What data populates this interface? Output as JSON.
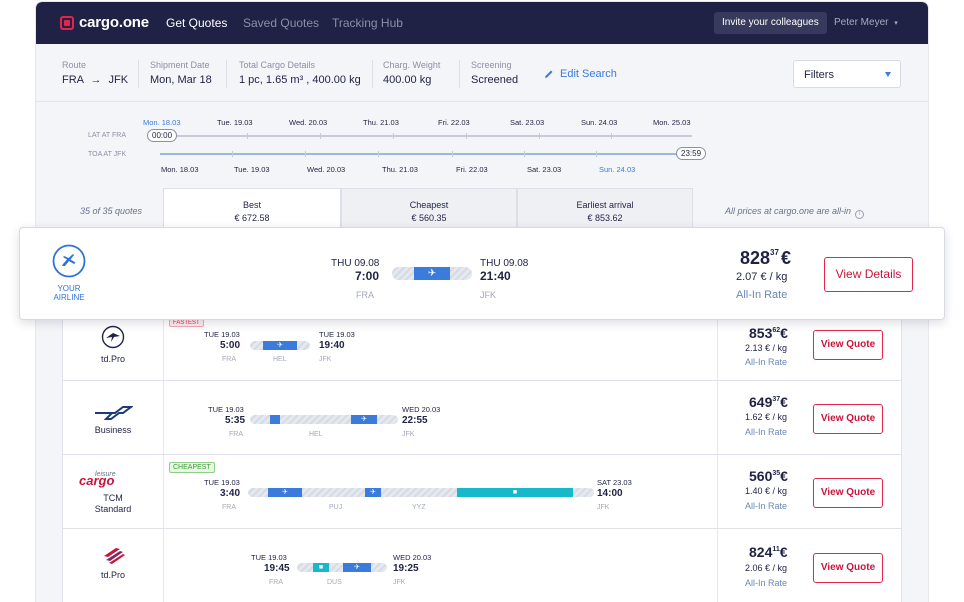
{
  "nav": {
    "logo": "cargo.one",
    "links": [
      "Get Quotes",
      "Saved Quotes",
      "Tracking Hub"
    ],
    "invite": "Invite your colleagues",
    "user": "Peter Meyer"
  },
  "search": {
    "route_label": "Route",
    "route_from": "FRA",
    "route_to": "JFK",
    "date_label": "Shipment Date",
    "date_value": "Mon, Mar 18",
    "cargo_label": "Total Cargo Details",
    "cargo_value": "1 pc, 1.65 m³ , 400.00 kg",
    "weight_label": "Charg. Weight",
    "weight_value": "400.00 kg",
    "screening_label": "Screening",
    "screening_value": "Screened",
    "edit": "Edit Search",
    "filters": "Filters"
  },
  "timeline": {
    "lat_label": "LAT AT FRA",
    "toa_label": "TOA AT JFK",
    "top_dates": [
      "Mon. 18.03",
      "Tue. 19.03",
      "Wed. 20.03",
      "Thu. 21.03",
      "Fri. 22.03",
      "Sat. 23.03",
      "Sun. 24.03",
      "Mon. 25.03"
    ],
    "bottom_dates": [
      "Mon. 18.03",
      "Tue. 19.03",
      "Wed. 20.03",
      "Thu. 21.03",
      "Fri. 22.03",
      "Sat. 23.03",
      "Sun. 24.03"
    ],
    "lat_value": "00:00",
    "toa_value": "23:59"
  },
  "tabs": {
    "count": "35 of 35 quotes",
    "best_label": "Best",
    "best_price": "€ 672.58",
    "cheapest_label": "Cheapest",
    "cheapest_price": "€ 560.35",
    "earliest_label": "Earliest arrival",
    "earliest_price": "€ 853.62",
    "note": "All prices at cargo.one are all-in"
  },
  "featured": {
    "airline_line1": "YOUR",
    "airline_line2": "AIRLINE",
    "dep_day": "THU 09.08",
    "dep_time": "7:00",
    "dep_code": "FRA",
    "arr_day": "THU 09.08",
    "arr_time": "21:40",
    "arr_code": "JFK",
    "price_main": "828",
    "price_cents": "37",
    "currency": "€",
    "per_kg": "2.07 € / kg",
    "all_in": "All-In Rate",
    "button": "View Details"
  },
  "quotes": [
    {
      "carrier": "td.Pro",
      "badge": "FASTEST",
      "dep_day": "TUE 19.03",
      "dep_time": "5:00",
      "dep_code": "FRA",
      "via": "HEL",
      "arr_day": "TUE 19.03",
      "arr_time": "19:40",
      "arr_code": "JFK",
      "price_main": "853",
      "price_cents": "62",
      "currency": "€",
      "per_kg": "2.13 € / kg",
      "all_in": "All-In Rate",
      "button": "View Quote"
    },
    {
      "carrier": "Business",
      "dep_day": "TUE 19.03",
      "dep_time": "5:35",
      "dep_code": "FRA",
      "via": "HEL",
      "arr_day": "WED 20.03",
      "arr_time": "22:55",
      "arr_code": "JFK",
      "price_main": "649",
      "price_cents": "37",
      "currency": "€",
      "per_kg": "1.62 € / kg",
      "all_in": "All-In Rate",
      "button": "View Quote"
    },
    {
      "carrier_logo_top": "leisure",
      "carrier_logo": "cargo",
      "carrier": "TCM",
      "carrier2": "Standard",
      "badge": "CHEAPEST",
      "dep_day": "TUE 19.03",
      "dep_time": "3:40",
      "dep_code": "FRA",
      "via": "PUJ",
      "via2": "YYZ",
      "arr_day": "SAT 23.03",
      "arr_time": "14:00",
      "arr_code": "JFK",
      "price_main": "560",
      "price_cents": "35",
      "currency": "€",
      "per_kg": "1.40 € / kg",
      "all_in": "All-In Rate",
      "button": "View Quote"
    },
    {
      "carrier": "td.Pro",
      "dep_day": "TUE 19.03",
      "dep_time": "19:45",
      "dep_code": "FRA",
      "via": "DUS",
      "arr_day": "WED 20.03",
      "arr_time": "19:25",
      "arr_code": "JFK",
      "price_main": "824",
      "price_cents": "11",
      "currency": "€",
      "per_kg": "2.06 € / kg",
      "all_in": "All-In Rate",
      "button": "View Quote"
    }
  ],
  "colors": {
    "nav_bg": "#1f2244",
    "brand_red": "#e3254c",
    "accent_blue": "#3a7bdc",
    "truck_teal": "#17b8c9"
  }
}
